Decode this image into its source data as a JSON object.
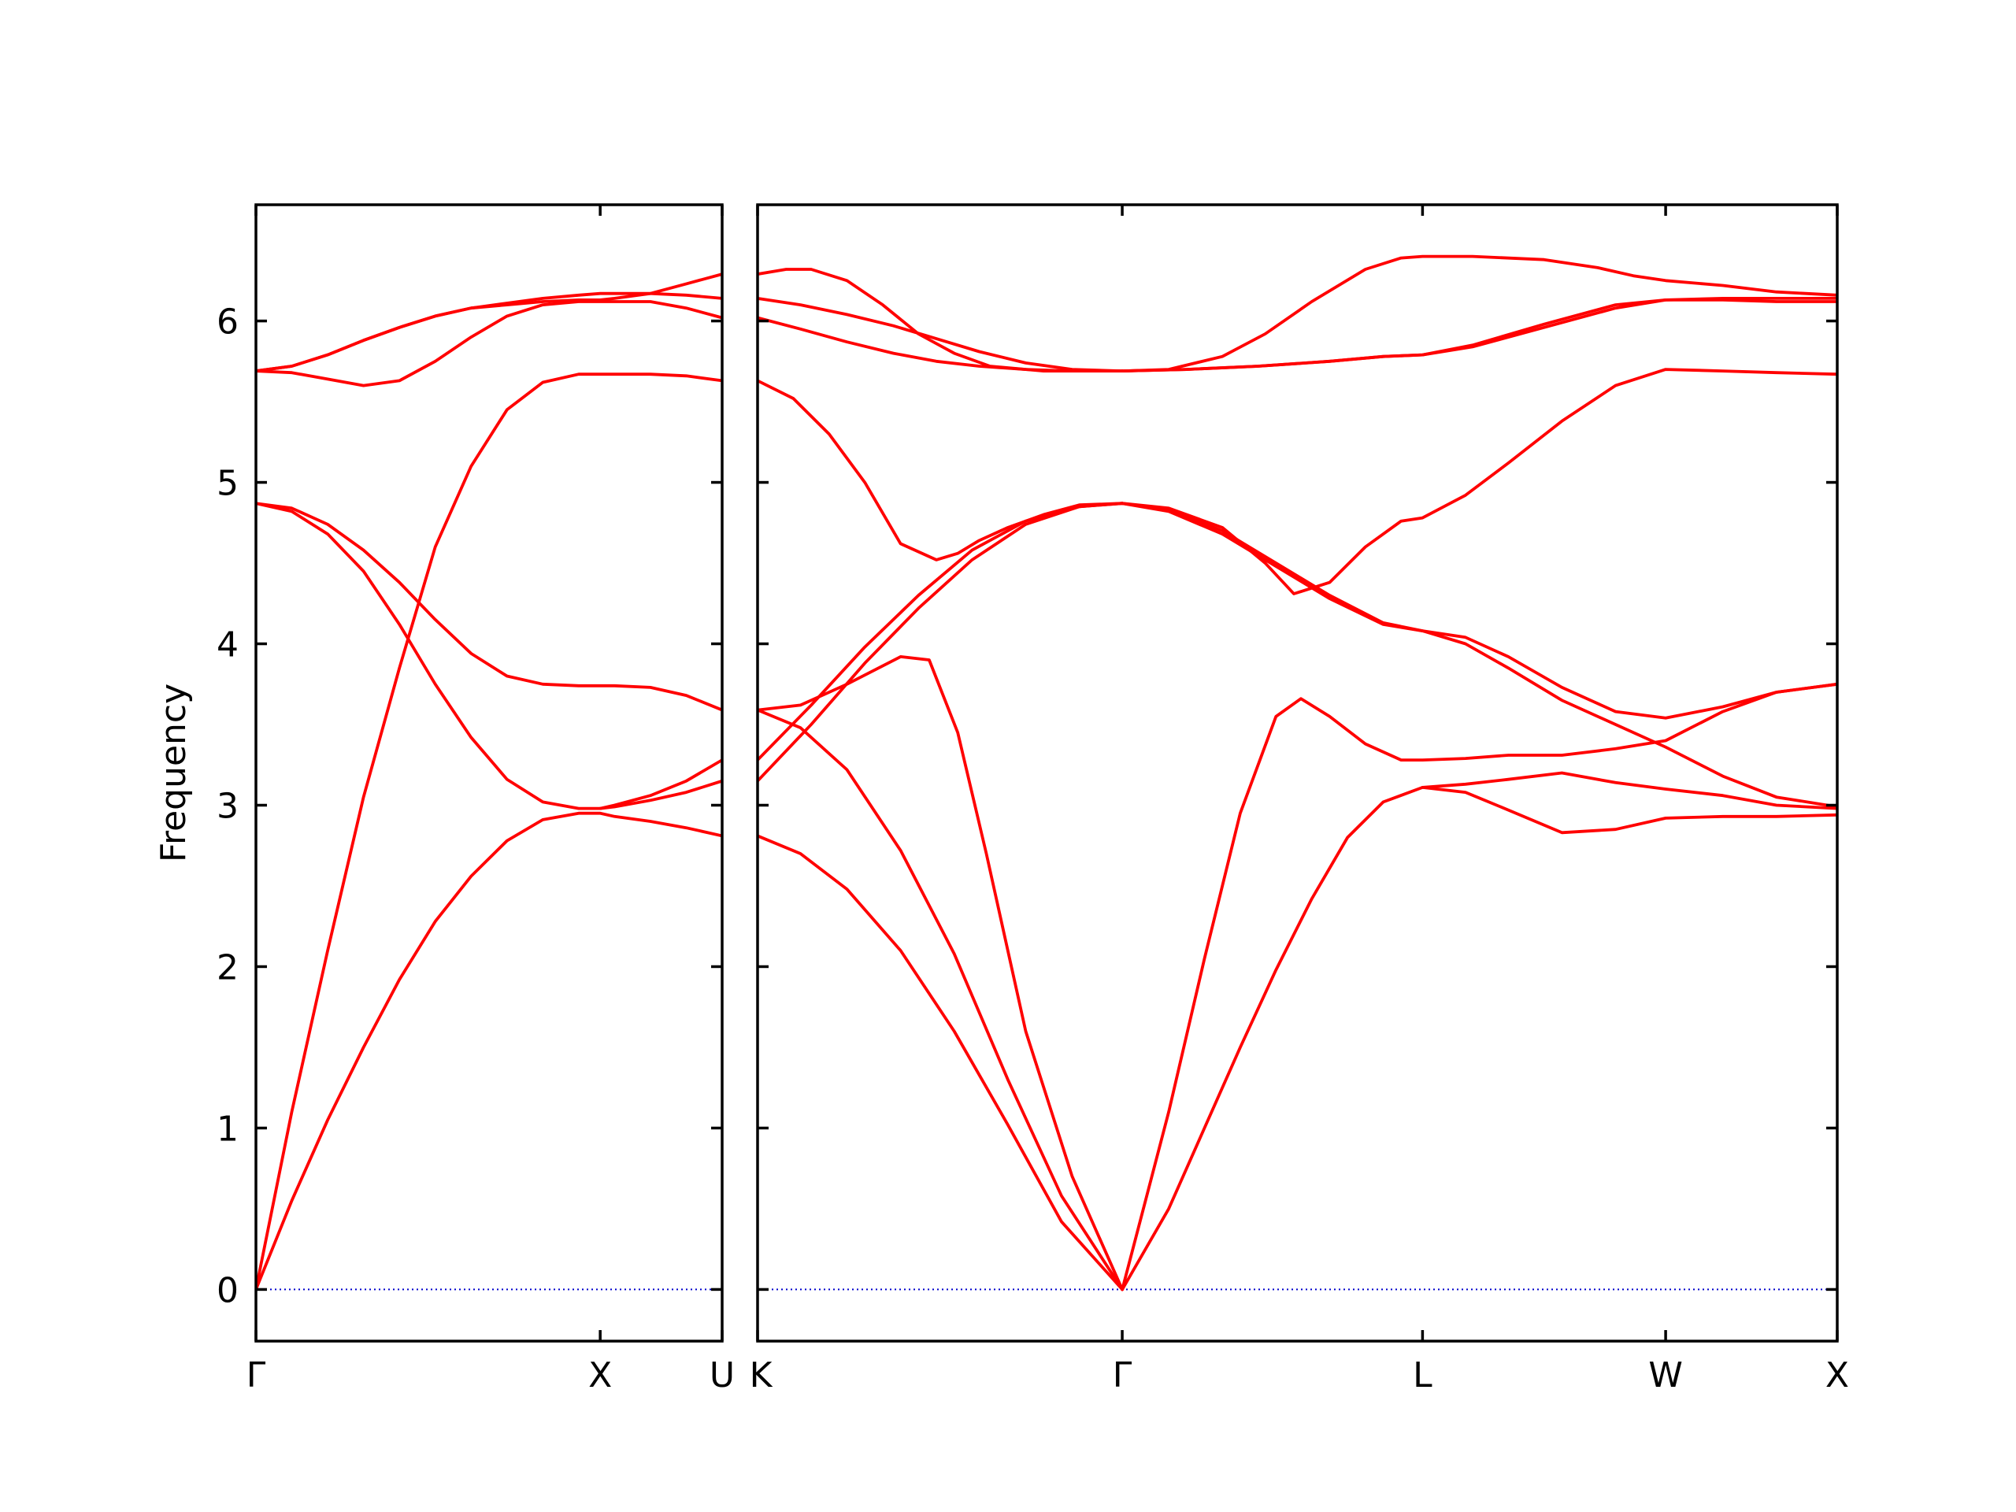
{
  "chart_data": {
    "type": "line",
    "title": "",
    "ylabel": "Frequency",
    "ylim": [
      -0.32,
      6.72
    ],
    "yticks": [
      0,
      1,
      2,
      3,
      4,
      5,
      6
    ],
    "grid": false,
    "colors": {
      "band": "#ff0000",
      "zero_line": "#0000cc",
      "axes": "#000000"
    },
    "panels": [
      {
        "id": "left",
        "xlim": [
          0,
          1.3
        ],
        "xticks": [
          {
            "x": 0,
            "label": "Γ"
          },
          {
            "x": 0.96,
            "label": "X"
          },
          {
            "x": 1.3,
            "label": "U"
          }
        ],
        "series": [
          {
            "x": [
              0,
              0.1,
              0.2,
              0.3,
              0.4,
              0.5,
              0.6,
              0.7,
              0.8,
              0.9,
              0.96,
              1.0,
              1.1,
              1.2,
              1.3
            ],
            "y": [
              0,
              0.55,
              1.05,
              1.5,
              1.92,
              2.28,
              2.56,
              2.78,
              2.91,
              2.95,
              2.95,
              2.93,
              2.9,
              2.86,
              2.81
            ]
          },
          {
            "x": [
              0,
              0.1,
              0.2,
              0.3,
              0.4,
              0.5,
              0.6,
              0.7,
              0.8,
              0.9,
              0.96,
              1.0,
              1.1,
              1.2,
              1.3
            ],
            "y": [
              0,
              1.1,
              2.1,
              3.05,
              3.85,
              4.6,
              5.1,
              5.45,
              5.62,
              5.67,
              5.67,
              5.67,
              5.67,
              5.66,
              5.63
            ]
          },
          {
            "x": [
              0,
              0.1,
              0.2,
              0.3,
              0.4,
              0.5,
              0.6,
              0.7,
              0.8,
              0.9,
              0.96,
              1.0,
              1.1,
              1.2,
              1.3
            ],
            "y": [
              4.87,
              4.82,
              4.68,
              4.45,
              4.12,
              3.75,
              3.42,
              3.16,
              3.02,
              2.98,
              2.98,
              2.99,
              3.03,
              3.08,
              3.15
            ]
          },
          {
            "x": [
              0,
              0.1,
              0.2,
              0.3,
              0.4,
              0.5,
              0.6,
              0.7,
              0.8,
              0.9,
              0.96,
              1.0,
              1.1,
              1.2,
              1.3
            ],
            "y": [
              4.87,
              4.84,
              4.74,
              4.58,
              4.38,
              4.15,
              3.94,
              3.8,
              3.75,
              3.74,
              3.74,
              3.74,
              3.73,
              3.68,
              3.59
            ]
          },
          {
            "x": [
              0,
              0.1,
              0.2,
              0.3,
              0.4,
              0.5,
              0.6,
              0.7,
              0.8,
              0.9,
              0.96,
              1.0,
              1.1,
              1.2,
              1.3
            ],
            "y": [
              5.69,
              5.68,
              5.64,
              5.6,
              5.63,
              5.75,
              5.9,
              6.03,
              6.1,
              6.12,
              6.12,
              6.12,
              6.12,
              6.08,
              6.02
            ]
          },
          {
            "x": [
              0,
              0.1,
              0.2,
              0.3,
              0.4,
              0.5,
              0.6,
              0.7,
              0.8,
              0.9,
              0.96,
              1.0,
              1.1,
              1.2,
              1.3
            ],
            "y": [
              5.69,
              5.72,
              5.79,
              5.88,
              5.96,
              6.03,
              6.08,
              6.1,
              6.12,
              6.13,
              6.13,
              6.14,
              6.17,
              6.23,
              6.29
            ]
          },
          {
            "x": [
              0,
              0.1,
              0.2,
              0.3,
              0.4,
              0.5,
              0.6,
              0.7,
              0.8,
              0.9,
              0.96,
              1.0,
              1.1,
              1.2,
              1.3
            ],
            "y": [
              5.69,
              5.72,
              5.79,
              5.88,
              5.96,
              6.03,
              6.08,
              6.11,
              6.14,
              6.16,
              6.17,
              6.17,
              6.17,
              6.16,
              6.14
            ]
          },
          {
            "x": [
              0.96,
              1.0,
              1.1,
              1.2,
              1.3
            ],
            "y": [
              2.98,
              3.0,
              3.06,
              3.15,
              3.28
            ]
          }
        ]
      },
      {
        "id": "right",
        "xlim": [
          0,
          3.02
        ],
        "xticks": [
          {
            "x": 0,
            "label": "K"
          },
          {
            "x": 1.02,
            "label": "Γ"
          },
          {
            "x": 1.86,
            "label": "L"
          },
          {
            "x": 2.54,
            "label": "W"
          },
          {
            "x": 3.02,
            "label": "X"
          }
        ],
        "series": [
          {
            "x": [
              0,
              0.12,
              0.25,
              0.4,
              0.55,
              0.7,
              0.85,
              1.02
            ],
            "y": [
              2.81,
              2.7,
              2.48,
              2.1,
              1.6,
              1.02,
              0.42,
              0
            ]
          },
          {
            "x": [
              0,
              0.12,
              0.25,
              0.4,
              0.55,
              0.7,
              0.85,
              1.02
            ],
            "y": [
              3.59,
              3.48,
              3.22,
              2.72,
              2.08,
              1.3,
              0.58,
              0
            ]
          },
          {
            "x": [
              0,
              0.12,
              0.25,
              0.4,
              0.48,
              0.56,
              0.64,
              0.75,
              0.88,
              1.02
            ],
            "y": [
              3.59,
              3.62,
              3.75,
              3.92,
              3.9,
              3.45,
              2.7,
              1.6,
              0.7,
              0
            ]
          },
          {
            "x": [
              1.02,
              1.15,
              1.25,
              1.35,
              1.45,
              1.55,
              1.65,
              1.75,
              1.86,
              1.98,
              2.1,
              2.25,
              2.4,
              2.54,
              2.7,
              2.85,
              3.02
            ],
            "y": [
              0,
              0.5,
              1.0,
              1.5,
              1.98,
              2.42,
              2.8,
              3.02,
              3.11,
              3.08,
              2.97,
              2.83,
              2.85,
              2.92,
              2.93,
              2.93,
              2.94
            ]
          },
          {
            "x": [
              1.02,
              1.15,
              1.25,
              1.35,
              1.45,
              1.52,
              1.6,
              1.7,
              1.8,
              1.86,
              1.98,
              2.1,
              2.25,
              2.4,
              2.54,
              2.7,
              2.85,
              3.02
            ],
            "y": [
              0,
              1.1,
              2.05,
              2.95,
              3.55,
              3.66,
              3.55,
              3.38,
              3.28,
              3.28,
              3.29,
              3.31,
              3.31,
              3.35,
              3.4,
              3.58,
              3.7,
              3.75
            ]
          },
          {
            "x": [
              1.86,
              1.98,
              2.1,
              2.25,
              2.4,
              2.54,
              2.7,
              2.85,
              3.02
            ],
            "y": [
              3.11,
              3.13,
              3.16,
              3.2,
              3.14,
              3.1,
              3.06,
              3.0,
              2.98
            ]
          },
          {
            "x": [
              0,
              0.15,
              0.3,
              0.45,
              0.6,
              0.75,
              0.9,
              1.02
            ],
            "y": [
              3.28,
              3.62,
              3.98,
              4.3,
              4.58,
              4.76,
              4.85,
              4.87
            ]
          },
          {
            "x": [
              0,
              0.15,
              0.3,
              0.45,
              0.6,
              0.75,
              0.9,
              1.02
            ],
            "y": [
              3.15,
              3.5,
              3.88,
              4.22,
              4.52,
              4.74,
              4.85,
              4.87
            ]
          },
          {
            "x": [
              1.02,
              1.15,
              1.3,
              1.42,
              1.5,
              1.6,
              1.7,
              1.8,
              1.86,
              1.98,
              2.1,
              2.25,
              2.4,
              2.54,
              2.7,
              2.85,
              3.02
            ],
            "y": [
              4.87,
              4.84,
              4.72,
              4.5,
              4.31,
              4.38,
              4.6,
              4.76,
              4.78,
              4.92,
              5.12,
              5.38,
              5.6,
              5.7,
              5.69,
              5.68,
              5.67
            ]
          },
          {
            "x": [
              1.02,
              1.15,
              1.3,
              1.45,
              1.6,
              1.75,
              1.86,
              1.98,
              2.1,
              2.25,
              2.4,
              2.54,
              2.7,
              2.85,
              3.02
            ],
            "y": [
              4.87,
              4.82,
              4.68,
              4.48,
              4.28,
              4.12,
              4.08,
              4.0,
              3.85,
              3.65,
              3.5,
              3.36,
              3.18,
              3.05,
              2.99
            ]
          },
          {
            "x": [
              1.02,
              1.15,
              1.3,
              1.45,
              1.6,
              1.75,
              1.86,
              1.98,
              2.1,
              2.25,
              2.4,
              2.54,
              2.7,
              2.85,
              3.02
            ],
            "y": [
              4.87,
              4.83,
              4.7,
              4.5,
              4.3,
              4.13,
              4.08,
              4.04,
              3.92,
              3.73,
              3.58,
              3.54,
              3.61,
              3.7,
              3.75
            ]
          },
          {
            "x": [
              0,
              0.1,
              0.2,
              0.3,
              0.4,
              0.5,
              0.56,
              0.62,
              0.7,
              0.8,
              0.9,
              1.02
            ],
            "y": [
              5.63,
              5.52,
              5.3,
              5.0,
              4.62,
              4.52,
              4.56,
              4.64,
              4.72,
              4.8,
              4.86,
              4.87
            ]
          },
          {
            "x": [
              0,
              0.12,
              0.25,
              0.38,
              0.5,
              0.62,
              0.75,
              0.88,
              1.02
            ],
            "y": [
              6.02,
              5.95,
              5.87,
              5.8,
              5.75,
              5.72,
              5.7,
              5.69,
              5.69
            ]
          },
          {
            "x": [
              0,
              0.12,
              0.25,
              0.38,
              0.5,
              0.62,
              0.75,
              0.88,
              1.02
            ],
            "y": [
              6.14,
              6.1,
              6.04,
              5.97,
              5.89,
              5.81,
              5.74,
              5.7,
              5.69
            ]
          },
          {
            "x": [
              0,
              0.08,
              0.15,
              0.25,
              0.35,
              0.45,
              0.55,
              0.65,
              0.8,
              1.02
            ],
            "y": [
              6.29,
              6.32,
              6.32,
              6.25,
              6.1,
              5.92,
              5.8,
              5.72,
              5.69,
              5.69
            ]
          },
          {
            "x": [
              1.02,
              1.2,
              1.4,
              1.6,
              1.75,
              1.86,
              2.0,
              2.2,
              2.4,
              2.54,
              2.7,
              2.85,
              3.02
            ],
            "y": [
              5.69,
              5.7,
              5.72,
              5.75,
              5.78,
              5.79,
              5.84,
              5.96,
              6.08,
              6.13,
              6.14,
              6.14,
              6.14
            ]
          },
          {
            "x": [
              1.02,
              1.2,
              1.4,
              1.6,
              1.75,
              1.86,
              2.0,
              2.2,
              2.4,
              2.54,
              2.7,
              2.85,
              3.02
            ],
            "y": [
              5.69,
              5.7,
              5.72,
              5.75,
              5.78,
              5.79,
              5.85,
              5.98,
              6.1,
              6.13,
              6.13,
              6.12,
              6.12
            ]
          },
          {
            "x": [
              1.02,
              1.15,
              1.3,
              1.42,
              1.55,
              1.7,
              1.8,
              1.86,
              2.0,
              2.2,
              2.35,
              2.45,
              2.54,
              2.7,
              2.85,
              3.02
            ],
            "y": [
              5.69,
              5.7,
              5.78,
              5.92,
              6.12,
              6.32,
              6.39,
              6.4,
              6.4,
              6.38,
              6.33,
              6.28,
              6.25,
              6.22,
              6.18,
              6.16
            ]
          }
        ]
      }
    ]
  }
}
